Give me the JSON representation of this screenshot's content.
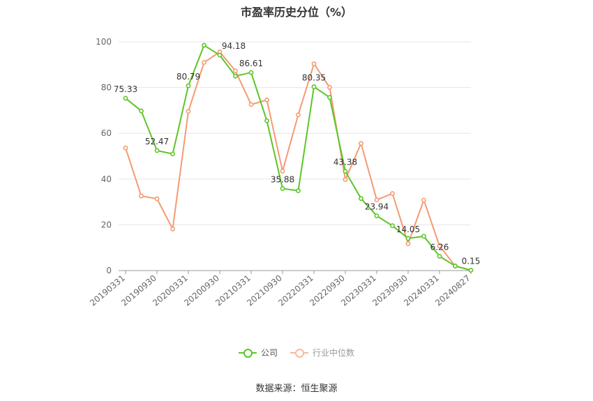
{
  "chart_data": {
    "type": "line",
    "title": "市盈率历史分位（%）",
    "source": "数据来源：恒生聚源",
    "x": [
      "20190331",
      "20190630",
      "20190930",
      "20191231",
      "20200331",
      "20200630",
      "20200930",
      "20201231",
      "20210331",
      "20210630",
      "20210930",
      "20211231",
      "20220331",
      "20220630",
      "20220930",
      "20221231",
      "20230331",
      "20230630",
      "20230930",
      "20231231",
      "20240331",
      "20240630",
      "20240827"
    ],
    "x_tick_labels": [
      "20190331",
      "20190930",
      "20200331",
      "20200930",
      "20210331",
      "20210930",
      "20220331",
      "20220930",
      "20230331",
      "20230930",
      "20240331",
      "20240827"
    ],
    "ylim": [
      0,
      100
    ],
    "y_ticks": [
      0,
      20,
      40,
      60,
      80,
      100
    ],
    "grid": true,
    "legend_position": "bottom",
    "series": [
      {
        "name": "公司",
        "color": "#5cc626",
        "values": [
          75.33,
          69.8,
          52.47,
          51.0,
          80.79,
          98.5,
          94.18,
          85.0,
          86.61,
          65.5,
          35.88,
          34.9,
          80.35,
          75.7,
          43.38,
          31.5,
          23.94,
          19.6,
          14.05,
          15.0,
          6.26,
          2.0,
          0.15
        ],
        "labels": {
          "0": "75.33",
          "2": "52.47",
          "4": "80.79",
          "6": "94.18",
          "8": "86.61",
          "10": "35.88",
          "12": "80.35",
          "14": "43.38",
          "16": "23.94",
          "18": "14.05",
          "20": "6.26",
          "22": "0.15"
        }
      },
      {
        "name": "行业中位数",
        "color": "#f59a72",
        "values": [
          53.6,
          32.6,
          31.4,
          18.2,
          69.6,
          91.0,
          95.6,
          87.3,
          72.6,
          74.6,
          43.5,
          68.1,
          90.4,
          80.1,
          39.8,
          55.6,
          30.9,
          33.7,
          11.8,
          30.8,
          10.8,
          2.0,
          0.15
        ]
      }
    ]
  }
}
